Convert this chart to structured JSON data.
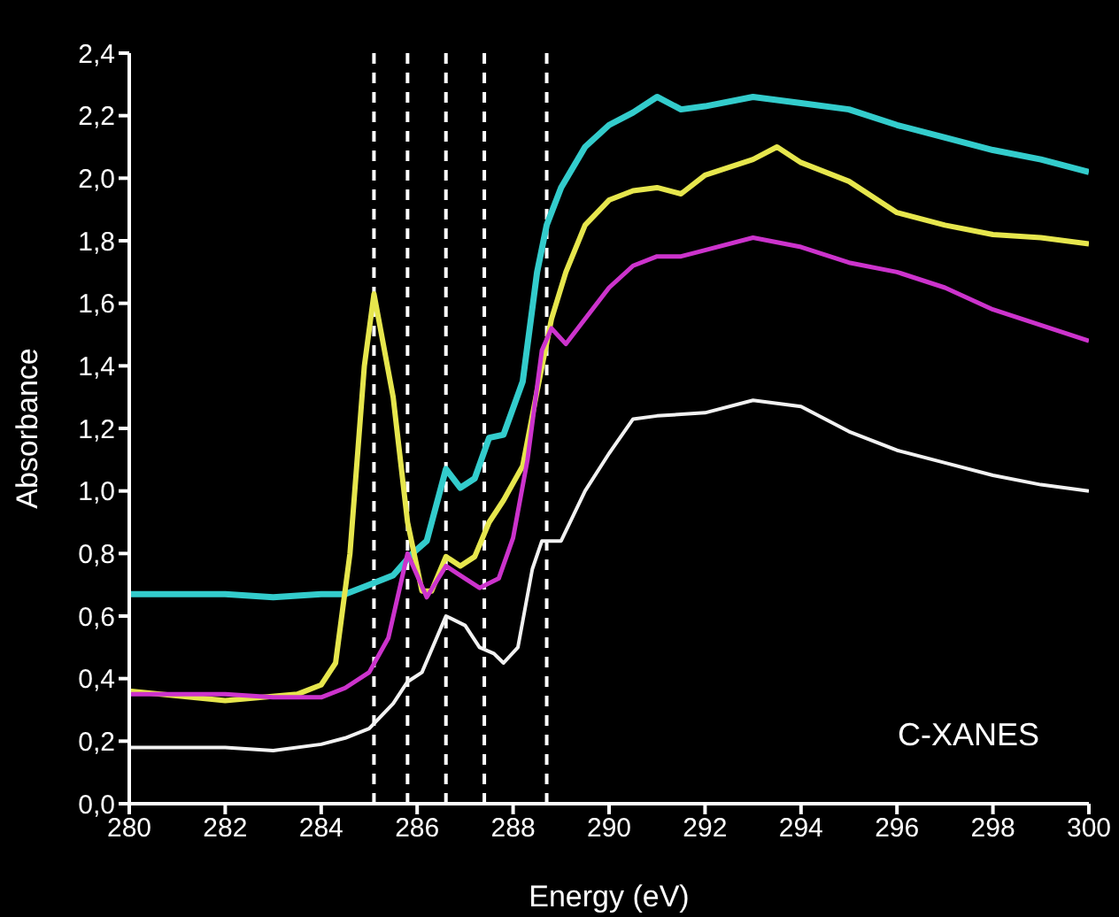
{
  "chart_data": {
    "type": "line",
    "xlabel": "Energy (eV)",
    "ylabel": "Absorbance",
    "annotations": [
      "C-XANES"
    ],
    "xlim": [
      280,
      300
    ],
    "xticks": [
      280,
      282,
      284,
      286,
      288,
      290,
      292,
      294,
      296,
      298,
      300
    ],
    "ylim": [
      0,
      2.4
    ],
    "yticks": [
      {
        "value": 0,
        "label": "0,0"
      },
      {
        "value": 0.2,
        "label": "0,2"
      },
      {
        "value": 0.4,
        "label": "0,4"
      },
      {
        "value": 0.6,
        "label": "0,6"
      },
      {
        "value": 0.8,
        "label": "0,8"
      },
      {
        "value": 1.0,
        "label": "1,0"
      },
      {
        "value": 1.2,
        "label": "1,2"
      },
      {
        "value": 1.4,
        "label": "1,4"
      },
      {
        "value": 1.6,
        "label": "1,6"
      },
      {
        "value": 1.8,
        "label": "1,8"
      },
      {
        "value": 2.0,
        "label": "2,0"
      },
      {
        "value": 2.2,
        "label": "2,2"
      },
      {
        "value": 2.4,
        "label": "2,4"
      }
    ],
    "ref_lines": [
      {
        "axis": "x",
        "value": 285.1,
        "color": "#ffffff",
        "line_style": "dashed"
      },
      {
        "axis": "x",
        "value": 285.8,
        "color": "#ffffff",
        "line_style": "dashed"
      },
      {
        "axis": "x",
        "value": 286.6,
        "color": "#ffffff",
        "line_style": "dashed"
      },
      {
        "axis": "x",
        "value": 287.4,
        "color": "#ffffff",
        "line_style": "dashed"
      },
      {
        "axis": "x",
        "value": 288.7,
        "color": "#ffffff",
        "line_style": "dashed"
      }
    ],
    "series": [
      {
        "color": "#33cccc",
        "x": [
          280,
          282,
          283,
          284,
          284.5,
          285,
          285.5,
          285.9,
          286.2,
          286.6,
          286.9,
          287.2,
          287.5,
          287.8,
          288.2,
          288.5,
          288.7,
          289,
          289.5,
          290,
          290.5,
          291,
          291.5,
          292,
          293,
          294,
          295,
          296,
          297,
          298,
          299,
          300
        ],
        "values": [
          0.67,
          0.67,
          0.66,
          0.67,
          0.67,
          0.7,
          0.73,
          0.8,
          0.84,
          1.07,
          1.01,
          1.04,
          1.17,
          1.18,
          1.35,
          1.7,
          1.85,
          1.97,
          2.1,
          2.17,
          2.21,
          2.26,
          2.22,
          2.23,
          2.26,
          2.24,
          2.22,
          2.17,
          2.13,
          2.09,
          2.06,
          2.02
        ]
      },
      {
        "color": "#e6e64d",
        "x": [
          280,
          282,
          283.5,
          284,
          284.3,
          284.6,
          284.9,
          285.1,
          285.5,
          285.8,
          286.1,
          286.3,
          286.6,
          286.9,
          287.2,
          287.5,
          287.8,
          288.2,
          288.5,
          288.8,
          289.1,
          289.5,
          290,
          290.5,
          291,
          291.5,
          292,
          293,
          293.5,
          294,
          295,
          296,
          297,
          298,
          299,
          300
        ],
        "values": [
          0.36,
          0.33,
          0.35,
          0.38,
          0.45,
          0.8,
          1.4,
          1.63,
          1.3,
          0.9,
          0.68,
          0.68,
          0.79,
          0.76,
          0.79,
          0.9,
          0.97,
          1.08,
          1.32,
          1.55,
          1.7,
          1.85,
          1.93,
          1.96,
          1.97,
          1.95,
          2.01,
          2.06,
          2.1,
          2.05,
          1.99,
          1.89,
          1.85,
          1.82,
          1.81,
          1.79
        ]
      },
      {
        "color": "#cc33cc",
        "x": [
          280,
          282,
          283,
          284,
          284.5,
          285,
          285.4,
          285.8,
          286.2,
          286.6,
          287,
          287.3,
          287.7,
          288,
          288.3,
          288.6,
          288.8,
          289.1,
          289.5,
          290,
          290.5,
          291,
          291.5,
          292,
          293,
          294,
          295,
          296,
          297,
          298,
          299,
          300
        ],
        "values": [
          0.35,
          0.35,
          0.34,
          0.34,
          0.37,
          0.42,
          0.53,
          0.8,
          0.66,
          0.76,
          0.72,
          0.69,
          0.72,
          0.85,
          1.1,
          1.45,
          1.52,
          1.47,
          1.55,
          1.65,
          1.72,
          1.75,
          1.75,
          1.77,
          1.81,
          1.78,
          1.73,
          1.7,
          1.65,
          1.58,
          1.53,
          1.48
        ]
      },
      {
        "color": "#f2f2f2",
        "x": [
          280,
          282,
          283,
          284,
          284.5,
          285,
          285.5,
          285.8,
          286.1,
          286.6,
          287,
          287.3,
          287.6,
          287.8,
          288.1,
          288.4,
          288.6,
          289,
          289.5,
          290,
          290.5,
          291,
          292,
          293,
          294,
          295,
          296,
          297,
          298,
          299,
          300
        ],
        "values": [
          0.18,
          0.18,
          0.17,
          0.19,
          0.21,
          0.24,
          0.32,
          0.39,
          0.42,
          0.6,
          0.57,
          0.5,
          0.48,
          0.45,
          0.5,
          0.75,
          0.84,
          0.84,
          1.0,
          1.12,
          1.23,
          1.24,
          1.25,
          1.29,
          1.27,
          1.19,
          1.13,
          1.09,
          1.05,
          1.02,
          1.0
        ]
      }
    ]
  }
}
